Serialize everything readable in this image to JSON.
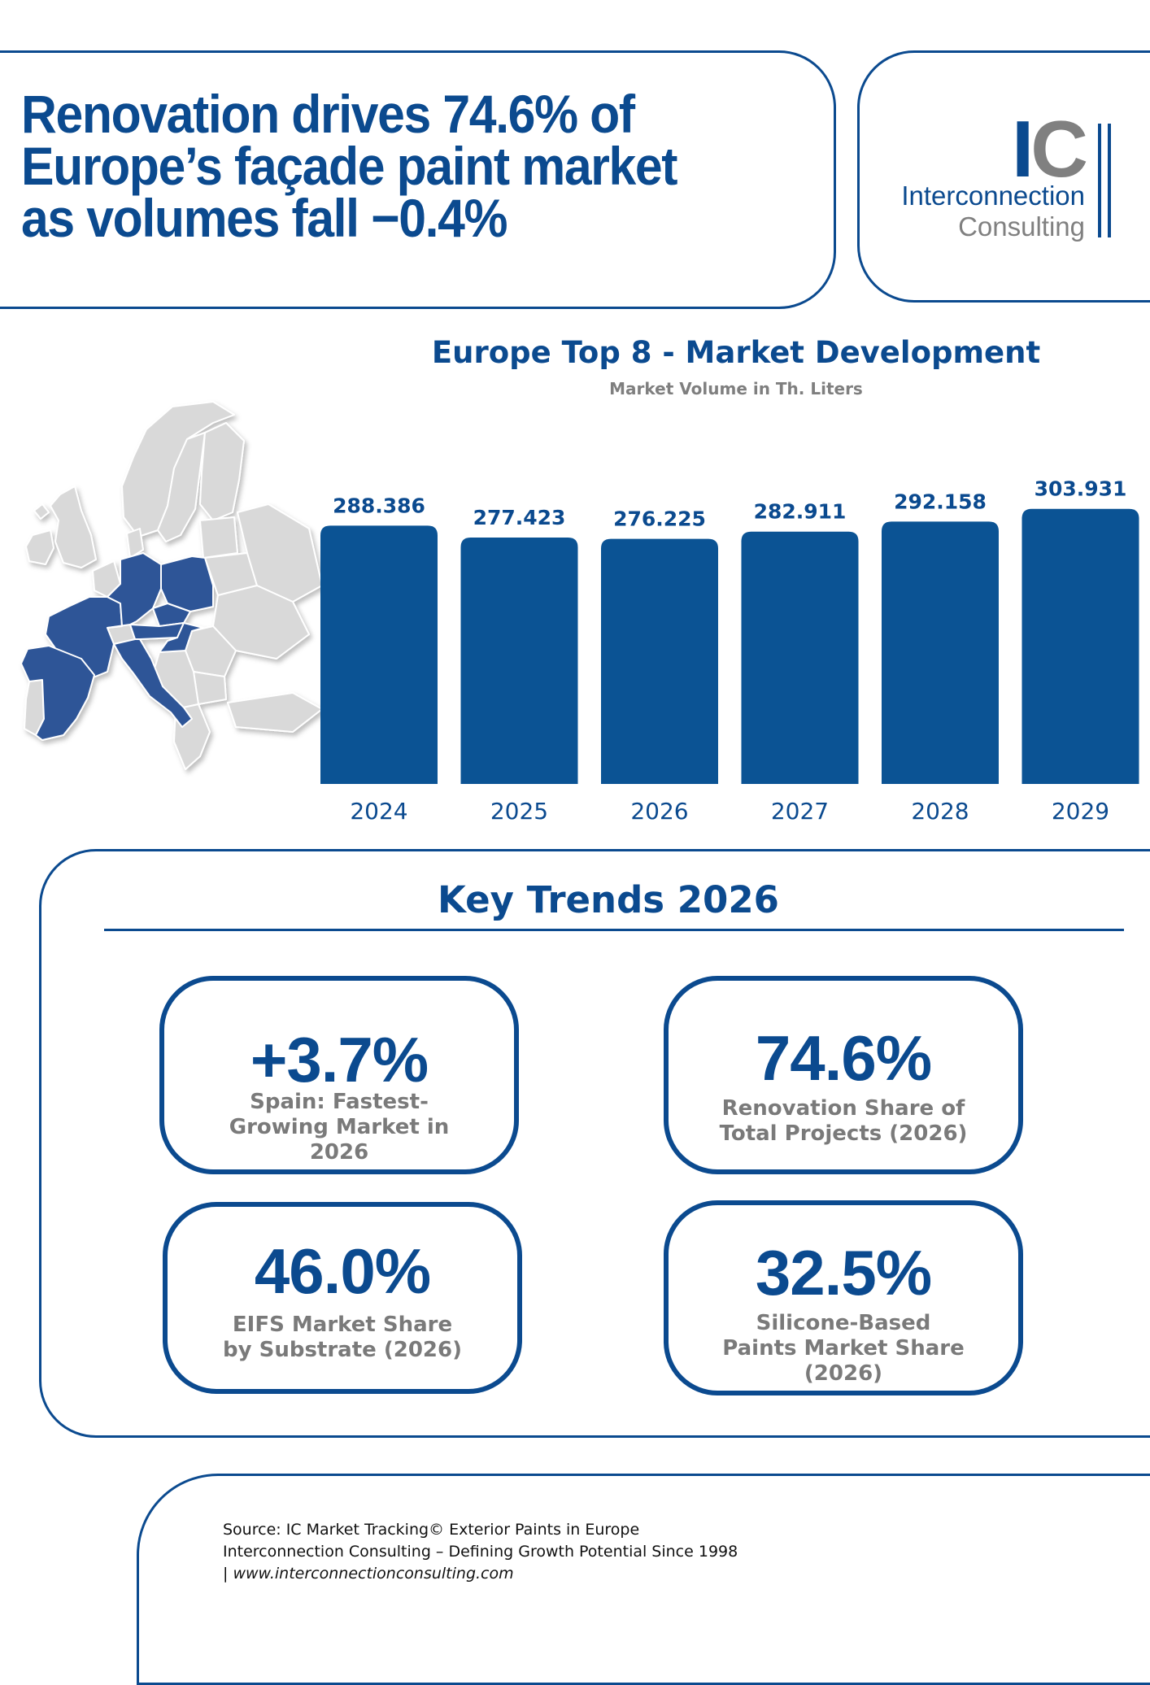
{
  "header": {
    "headline_lines": [
      "Renovation drives 74.6% of",
      "Europe’s façade paint market",
      "as volumes fall −0.4%"
    ]
  },
  "logo": {
    "mark_i": "I",
    "mark_c": "C",
    "line1": "Interconnection",
    "line2": "Consulting"
  },
  "chart_data": {
    "type": "bar",
    "title": "Europe Top 8 - Market Development",
    "subtitle": "Market Volume in Th. Liters",
    "categories": [
      "2024",
      "2025",
      "2026",
      "2027",
      "2028",
      "2029"
    ],
    "values": [
      288.386,
      277.423,
      276.225,
      282.911,
      292.158,
      303.931
    ],
    "value_labels": [
      "288.386",
      "277.423",
      "276.225",
      "282.911",
      "292.158",
      "303.931"
    ],
    "xlabel": "",
    "ylabel": "Market Volume in Th. Liters",
    "ylim": [
      0,
      310
    ],
    "grid": false,
    "color": "#0b5394"
  },
  "map": {
    "highlight_color": "#2f5597",
    "base_color": "#d9d9d9"
  },
  "trends": {
    "title": "Key Trends 2026",
    "cards": [
      {
        "value": "+3.7%",
        "label_lines": [
          "Spain: Fastest-",
          "Growing Market in",
          "2026"
        ]
      },
      {
        "value": "74.6%",
        "label_lines": [
          "Renovation Share of",
          "Total Projects (2026)"
        ]
      },
      {
        "value": "46.0%",
        "label_lines": [
          "EIFS Market Share",
          "by Substrate (2026)"
        ]
      },
      {
        "value": "32.5%",
        "label_lines": [
          "Silicone-Based",
          "Paints Market Share",
          "(2026)"
        ]
      }
    ]
  },
  "footer": {
    "source": "Source: IC Market Tracking© Exterior Paints in Europe",
    "tagline": "Interconnection Consulting – Defining Growth Potential Since 1998",
    "url_prefix": "| ",
    "url": "www.interconnectionconsulting.com"
  }
}
